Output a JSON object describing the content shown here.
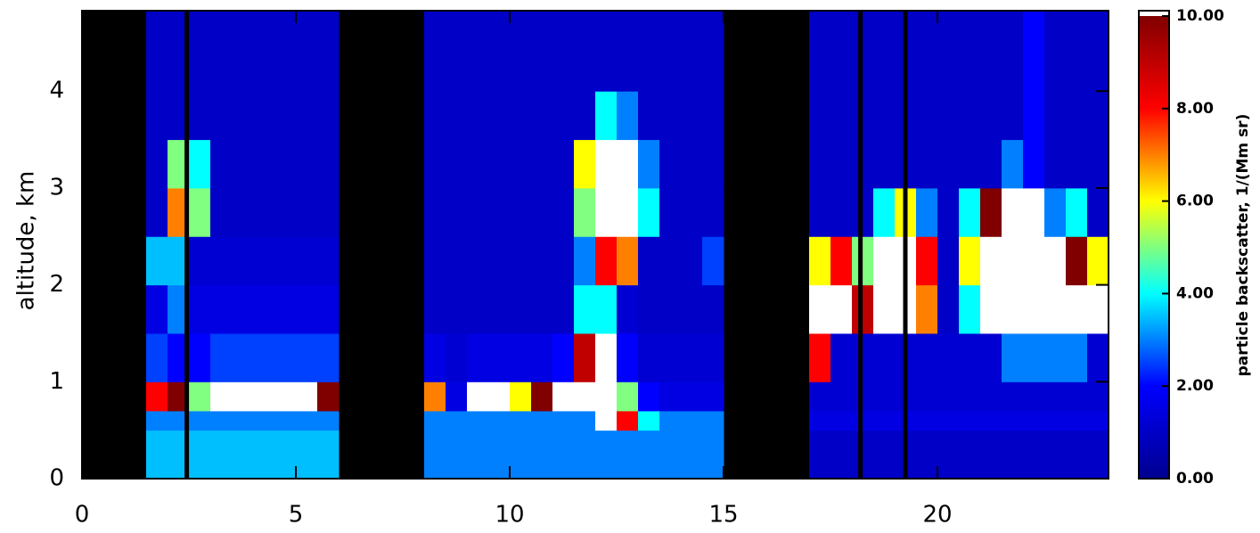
{
  "chart_data": {
    "type": "heatmap",
    "y_label": "altitude, km",
    "colorbar_label": "particle backscatter, 1/(Mm sr)",
    "xlim": [
      0,
      24
    ],
    "xticks": [
      0,
      5,
      10,
      15,
      20
    ],
    "ylim": [
      0,
      4.83
    ],
    "yticks": [
      0,
      1,
      2,
      3,
      4
    ],
    "clim": [
      0,
      10
    ],
    "cticks": [
      {
        "value": 0,
        "label": "0.00"
      },
      {
        "value": 2,
        "label": "2.00"
      },
      {
        "value": 4,
        "label": "4.00"
      },
      {
        "value": 6,
        "label": "6.00"
      },
      {
        "value": 8,
        "label": "8.00"
      },
      {
        "value": 10,
        "label": "10.00"
      }
    ],
    "colormap": [
      "#00008f",
      "#0000ff",
      "#00ffff",
      "#ffff00",
      "#ff0000",
      "#800000"
    ],
    "over_color": "#ffffff",
    "missing_color": "#000000",
    "x_edges": [
      0,
      0.5,
      1,
      1.5,
      2,
      2.5,
      3,
      3.5,
      4,
      4.5,
      5,
      5.5,
      6,
      6.5,
      7,
      7.5,
      8,
      8.5,
      9,
      9.5,
      10,
      10.5,
      11,
      11.5,
      12,
      12.5,
      13,
      13.5,
      14,
      14.5,
      15,
      15.5,
      16,
      16.5,
      17,
      17.5,
      18,
      18.5,
      19,
      19.5,
      20,
      20.5,
      21,
      21.5,
      22,
      22.5,
      23,
      23.5,
      24
    ],
    "y_edges": [
      0,
      0.5,
      0.7,
      1,
      1.5,
      2,
      2.5,
      3,
      3.5,
      4,
      4.83
    ],
    "missing_x": [
      2.45,
      18.2,
      19.25
    ],
    "values": [
      [
        null,
        null,
        null,
        null,
        null,
        null,
        null,
        null,
        null,
        null
      ],
      [
        null,
        null,
        null,
        null,
        null,
        null,
        null,
        null,
        null,
        null
      ],
      [
        null,
        null,
        null,
        null,
        null,
        null,
        null,
        null,
        null,
        null
      ],
      [
        3.5,
        3,
        8,
        2.5,
        1.5,
        3.5,
        1,
        1,
        1,
        1
      ],
      [
        3.5,
        3,
        10,
        2,
        3,
        3.5,
        7,
        5,
        1,
        1
      ],
      [
        3.5,
        3,
        5,
        2,
        1.5,
        1.2,
        5,
        4,
        1,
        1
      ],
      [
        3.5,
        3,
        12,
        2.5,
        1.5,
        1.2,
        1,
        1,
        1,
        1
      ],
      [
        3.5,
        3,
        12,
        2.5,
        1.5,
        1.2,
        1,
        1,
        1,
        1
      ],
      [
        3.5,
        3,
        12,
        2.5,
        1.5,
        1.2,
        1,
        1,
        1,
        1
      ],
      [
        3.5,
        3,
        12,
        2.5,
        1.5,
        1.2,
        1,
        1,
        1,
        1
      ],
      [
        3.5,
        3,
        12,
        2.5,
        1.5,
        1.2,
        1,
        1,
        1,
        1
      ],
      [
        3.5,
        3,
        10,
        2.5,
        1.5,
        1.2,
        1,
        1,
        1,
        1
      ],
      [
        null,
        null,
        null,
        null,
        null,
        null,
        null,
        null,
        null,
        null
      ],
      [
        null,
        null,
        null,
        null,
        null,
        null,
        null,
        null,
        null,
        null
      ],
      [
        null,
        null,
        null,
        null,
        null,
        null,
        null,
        null,
        null,
        null
      ],
      [
        null,
        null,
        null,
        null,
        null,
        null,
        null,
        null,
        null,
        null
      ],
      [
        3,
        3,
        7,
        1.5,
        1,
        1,
        1,
        1,
        1,
        1
      ],
      [
        3,
        3,
        1.5,
        1.2,
        1,
        1,
        1,
        1,
        1,
        1
      ],
      [
        3,
        3,
        12,
        1.5,
        1,
        1,
        1,
        1,
        1,
        1
      ],
      [
        3,
        3,
        12,
        1.5,
        1,
        1,
        1,
        1,
        1,
        1
      ],
      [
        3,
        3,
        6,
        1.5,
        1,
        1,
        1,
        1,
        1,
        1
      ],
      [
        3,
        3,
        10,
        1.5,
        1,
        1,
        1,
        1,
        1,
        1
      ],
      [
        3,
        3,
        12,
        2,
        1,
        1,
        1,
        1,
        1,
        1
      ],
      [
        3,
        3,
        12,
        9,
        4,
        3,
        5,
        6,
        1,
        1
      ],
      [
        3,
        12,
        12,
        12,
        4,
        8,
        12,
        12,
        4,
        1
      ],
      [
        3,
        8,
        5,
        2,
        1.2,
        7,
        12,
        12,
        3,
        1
      ],
      [
        3,
        4,
        2,
        1.2,
        1,
        1,
        4,
        3,
        1,
        1
      ],
      [
        3,
        3,
        1.5,
        1.2,
        1,
        1,
        1,
        1,
        1,
        1
      ],
      [
        3,
        3,
        1.5,
        1.2,
        1,
        1,
        1,
        1,
        1,
        1
      ],
      [
        3,
        3,
        1.5,
        1.2,
        1,
        2.5,
        1,
        1,
        1,
        1
      ],
      [
        null,
        null,
        null,
        null,
        null,
        null,
        null,
        null,
        null,
        null
      ],
      [
        null,
        null,
        null,
        null,
        null,
        null,
        null,
        null,
        null,
        null
      ],
      [
        null,
        null,
        null,
        null,
        null,
        null,
        null,
        null,
        null,
        null
      ],
      [
        null,
        null,
        null,
        null,
        null,
        null,
        null,
        null,
        null,
        null
      ],
      [
        1,
        1.5,
        1.2,
        8,
        12,
        6,
        1,
        1,
        1,
        1
      ],
      [
        1,
        1.5,
        1.2,
        1.2,
        12,
        8,
        1,
        1,
        1,
        1
      ],
      [
        1,
        1.5,
        1.2,
        1.2,
        9,
        5,
        1,
        1,
        1,
        1
      ],
      [
        1,
        1.5,
        1.2,
        1.2,
        12,
        12,
        4,
        1,
        1,
        1
      ],
      [
        1,
        1.5,
        1.2,
        1.2,
        12,
        12,
        6,
        1,
        1,
        1
      ],
      [
        1,
        1.5,
        1.2,
        1.2,
        7,
        8,
        3,
        1,
        1,
        1
      ],
      [
        1,
        1.5,
        1.2,
        1.2,
        1,
        1,
        1,
        1,
        1,
        1
      ],
      [
        1,
        1.5,
        1.2,
        1.2,
        4,
        6,
        4,
        1,
        1,
        1
      ],
      [
        1,
        1.5,
        1.2,
        1.2,
        12,
        12,
        10,
        1,
        1,
        1
      ],
      [
        1,
        1.5,
        1.2,
        3,
        12,
        12,
        12,
        3,
        1,
        1
      ],
      [
        1,
        1.5,
        1.2,
        3,
        12,
        12,
        12,
        2,
        2,
        2
      ],
      [
        1,
        1.5,
        1.2,
        3,
        12,
        12,
        3,
        1,
        1,
        1
      ],
      [
        1,
        1.5,
        1.2,
        3,
        12,
        10,
        4,
        1,
        1,
        1
      ],
      [
        1,
        1.5,
        1.2,
        1.2,
        12,
        6,
        1,
        1,
        1,
        1
      ]
    ]
  }
}
